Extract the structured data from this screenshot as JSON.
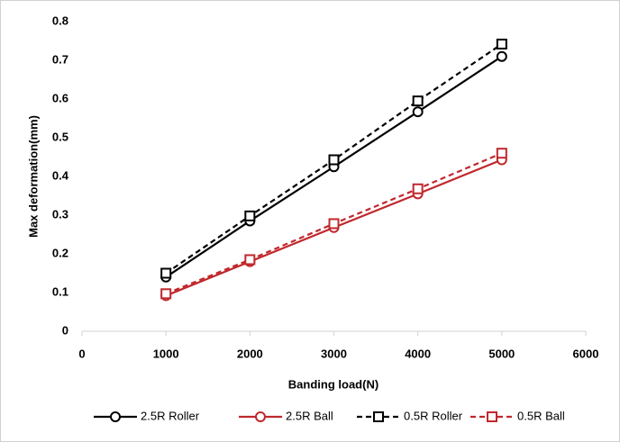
{
  "chart_data": {
    "type": "line",
    "x_label": "Banding load(N)",
    "y_label": "Max deformation(mm)",
    "x": [
      1000,
      2000,
      3000,
      4000,
      5000
    ],
    "series": [
      {
        "name": "2.5R Roller",
        "color": "#000000",
        "dashed": false,
        "marker": "circle",
        "values": [
          0.14,
          0.285,
          0.425,
          0.567,
          0.71
        ]
      },
      {
        "name": "2.5R Ball",
        "color": "#c0282d",
        "dashed": false,
        "marker": "circle",
        "values": [
          0.092,
          0.18,
          0.268,
          0.355,
          0.443
        ]
      },
      {
        "name": "0.5R Roller",
        "color": "#000000",
        "dashed": true,
        "marker": "square",
        "values": [
          0.15,
          0.298,
          0.443,
          0.595,
          0.742
        ]
      },
      {
        "name": "0.5R Ball",
        "color": "#c0282d",
        "dashed": true,
        "marker": "square",
        "values": [
          0.097,
          0.185,
          0.278,
          0.368,
          0.46
        ]
      }
    ],
    "xlim": [
      0,
      6000
    ],
    "xticks": [
      0,
      1000,
      2000,
      3000,
      4000,
      5000,
      6000
    ],
    "ylim": [
      0,
      0.8
    ],
    "yticks": [
      0,
      0.1,
      0.2,
      0.3,
      0.4,
      0.5,
      0.6,
      0.7,
      0.8
    ],
    "legend": "bottom"
  }
}
